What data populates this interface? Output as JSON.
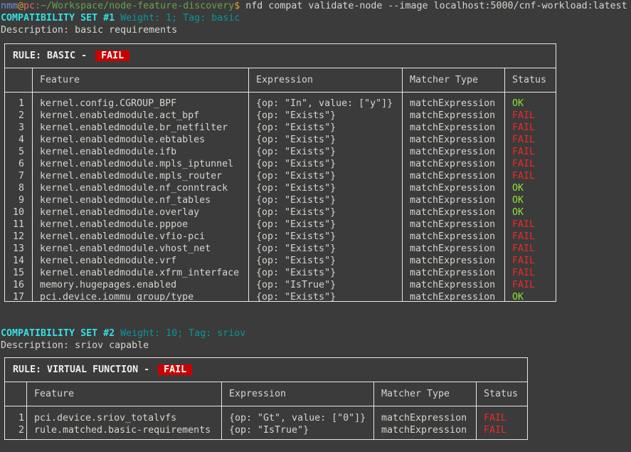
{
  "prompt": {
    "user": "nmm",
    "at": "@",
    "host": "pc",
    "path": ":~/Workspace/node-feature-discovery",
    "symbol": "$",
    "command": " nfd compat validate-node --image localhost:5000/cnf-workload:latest"
  },
  "sets": [
    {
      "heading": "COMPATIBILITY SET #1",
      "meta": " Weight: 1; Tag: basic",
      "description": "Description: basic requirements",
      "rule_label": "RULE: BASIC - ",
      "rule_status": "FAIL",
      "columns": [
        "Feature",
        "Expression",
        "Matcher Type",
        "Status"
      ],
      "rows": [
        [
          "1",
          "kernel.config.CGROUP_BPF",
          "{op: \"In\", value: [\"y\"]}",
          "matchExpression",
          "OK"
        ],
        [
          "2",
          "kernel.enabledmodule.act_bpf",
          "{op: \"Exists\"}",
          "matchExpression",
          "FAIL"
        ],
        [
          "3",
          "kernel.enabledmodule.br_netfilter",
          "{op: \"Exists\"}",
          "matchExpression",
          "FAIL"
        ],
        [
          "4",
          "kernel.enabledmodule.ebtables",
          "{op: \"Exists\"}",
          "matchExpression",
          "FAIL"
        ],
        [
          "5",
          "kernel.enabledmodule.ifb",
          "{op: \"Exists\"}",
          "matchExpression",
          "FAIL"
        ],
        [
          "6",
          "kernel.enabledmodule.mpls_iptunnel",
          "{op: \"Exists\"}",
          "matchExpression",
          "FAIL"
        ],
        [
          "7",
          "kernel.enabledmodule.mpls_router",
          "{op: \"Exists\"}",
          "matchExpression",
          "FAIL"
        ],
        [
          "8",
          "kernel.enabledmodule.nf_conntrack",
          "{op: \"Exists\"}",
          "matchExpression",
          "OK"
        ],
        [
          "9",
          "kernel.enabledmodule.nf_tables",
          "{op: \"Exists\"}",
          "matchExpression",
          "OK"
        ],
        [
          "10",
          "kernel.enabledmodule.overlay",
          "{op: \"Exists\"}",
          "matchExpression",
          "OK"
        ],
        [
          "11",
          "kernel.enabledmodule.pppoe",
          "{op: \"Exists\"}",
          "matchExpression",
          "FAIL"
        ],
        [
          "12",
          "kernel.enabledmodule.vfio-pci",
          "{op: \"Exists\"}",
          "matchExpression",
          "FAIL"
        ],
        [
          "13",
          "kernel.enabledmodule.vhost_net",
          "{op: \"Exists\"}",
          "matchExpression",
          "FAIL"
        ],
        [
          "14",
          "kernel.enabledmodule.vrf",
          "{op: \"Exists\"}",
          "matchExpression",
          "FAIL"
        ],
        [
          "15",
          "kernel.enabledmodule.xfrm_interface",
          "{op: \"Exists\"}",
          "matchExpression",
          "FAIL"
        ],
        [
          "16",
          "memory.hugepages.enabled",
          "{op: \"IsTrue\"}",
          "matchExpression",
          "FAIL"
        ],
        [
          "17",
          "pci.device.iommu_group/type",
          "{op: \"Exists\"}",
          "matchExpression",
          "OK"
        ]
      ]
    },
    {
      "heading": "COMPATIBILITY SET #2",
      "meta": " Weight: 10; Tag: sriov",
      "description": "Description: sriov capable",
      "rule_label": "RULE: VIRTUAL FUNCTION - ",
      "rule_status": "FAIL",
      "columns": [
        "Feature",
        "Expression",
        "Matcher Type",
        "Status"
      ],
      "rows": [
        [
          "1",
          "pci.device.sriov_totalvfs",
          "{op: \"Gt\", value: [\"0\"]}",
          "matchExpression",
          "FAIL"
        ],
        [
          "2",
          "rule.matched.basic-requirements",
          "{op: \"IsTrue\"}",
          "matchExpression",
          "FAIL"
        ]
      ]
    }
  ],
  "colors": {
    "ok": "#8ae234",
    "fail": "#ef2929",
    "badge": "#cc0000",
    "heading": "#34e2e2"
  }
}
